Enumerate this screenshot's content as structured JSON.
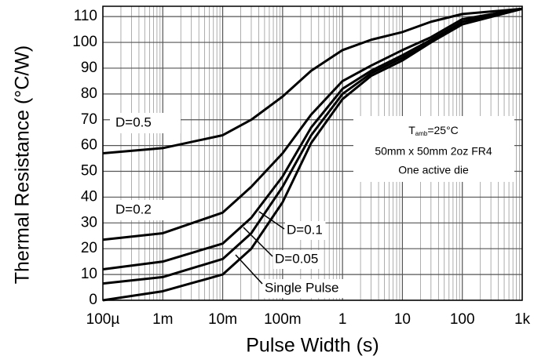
{
  "chart_data": {
    "type": "line",
    "x_label": "Pulse Width (s)",
    "y_label": "Thermal Resistance (°C/W)",
    "log_x": true,
    "grid": true,
    "minor_grid": true,
    "xlim": [
      0.0001,
      1000
    ],
    "ylim": [
      0,
      114
    ],
    "xticks": [
      {
        "value": 0.0001,
        "label": "100µ"
      },
      {
        "value": 0.001,
        "label": "1m"
      },
      {
        "value": 0.01,
        "label": "10m"
      },
      {
        "value": 0.1,
        "label": "100m"
      },
      1,
      10,
      100,
      {
        "value": 1000,
        "label": "1k"
      }
    ],
    "yticks": [
      0,
      10,
      20,
      30,
      40,
      50,
      60,
      70,
      80,
      90,
      100,
      110
    ],
    "x": [
      0.0001,
      0.001,
      0.01,
      0.03,
      0.1,
      0.3,
      1,
      3,
      10,
      30,
      100,
      1000
    ],
    "series": [
      {
        "name": "D=0.5",
        "color": "#000000",
        "values": [
          57,
          59,
          64,
          70,
          79,
          89,
          97,
          101,
          104,
          108,
          111,
          113
        ]
      },
      {
        "name": "D=0.2",
        "color": "#000000",
        "values": [
          23.5,
          26,
          34,
          44,
          57,
          72,
          85,
          91,
          97,
          102,
          109,
          113
        ]
      },
      {
        "name": "D=0.1",
        "color": "#000000",
        "values": [
          12,
          15,
          22,
          32,
          48,
          67,
          82,
          89,
          95,
          101,
          108,
          113
        ]
      },
      {
        "name": "D=0.05",
        "color": "#000000",
        "values": [
          6.5,
          9,
          16,
          26,
          44,
          64,
          80,
          88,
          94,
          100,
          108,
          113
        ]
      },
      {
        "name": "Single Pulse",
        "color": "#000000",
        "values": [
          0,
          3.5,
          10,
          20,
          38,
          61,
          78,
          87,
          93,
          100,
          107,
          113
        ]
      }
    ],
    "annotation": {
      "symbol": "T",
      "subscript": "amb",
      "text": "=25°C",
      "lines": [
        "50mm x 50mm 2oz FR4",
        "One active die"
      ]
    }
  }
}
